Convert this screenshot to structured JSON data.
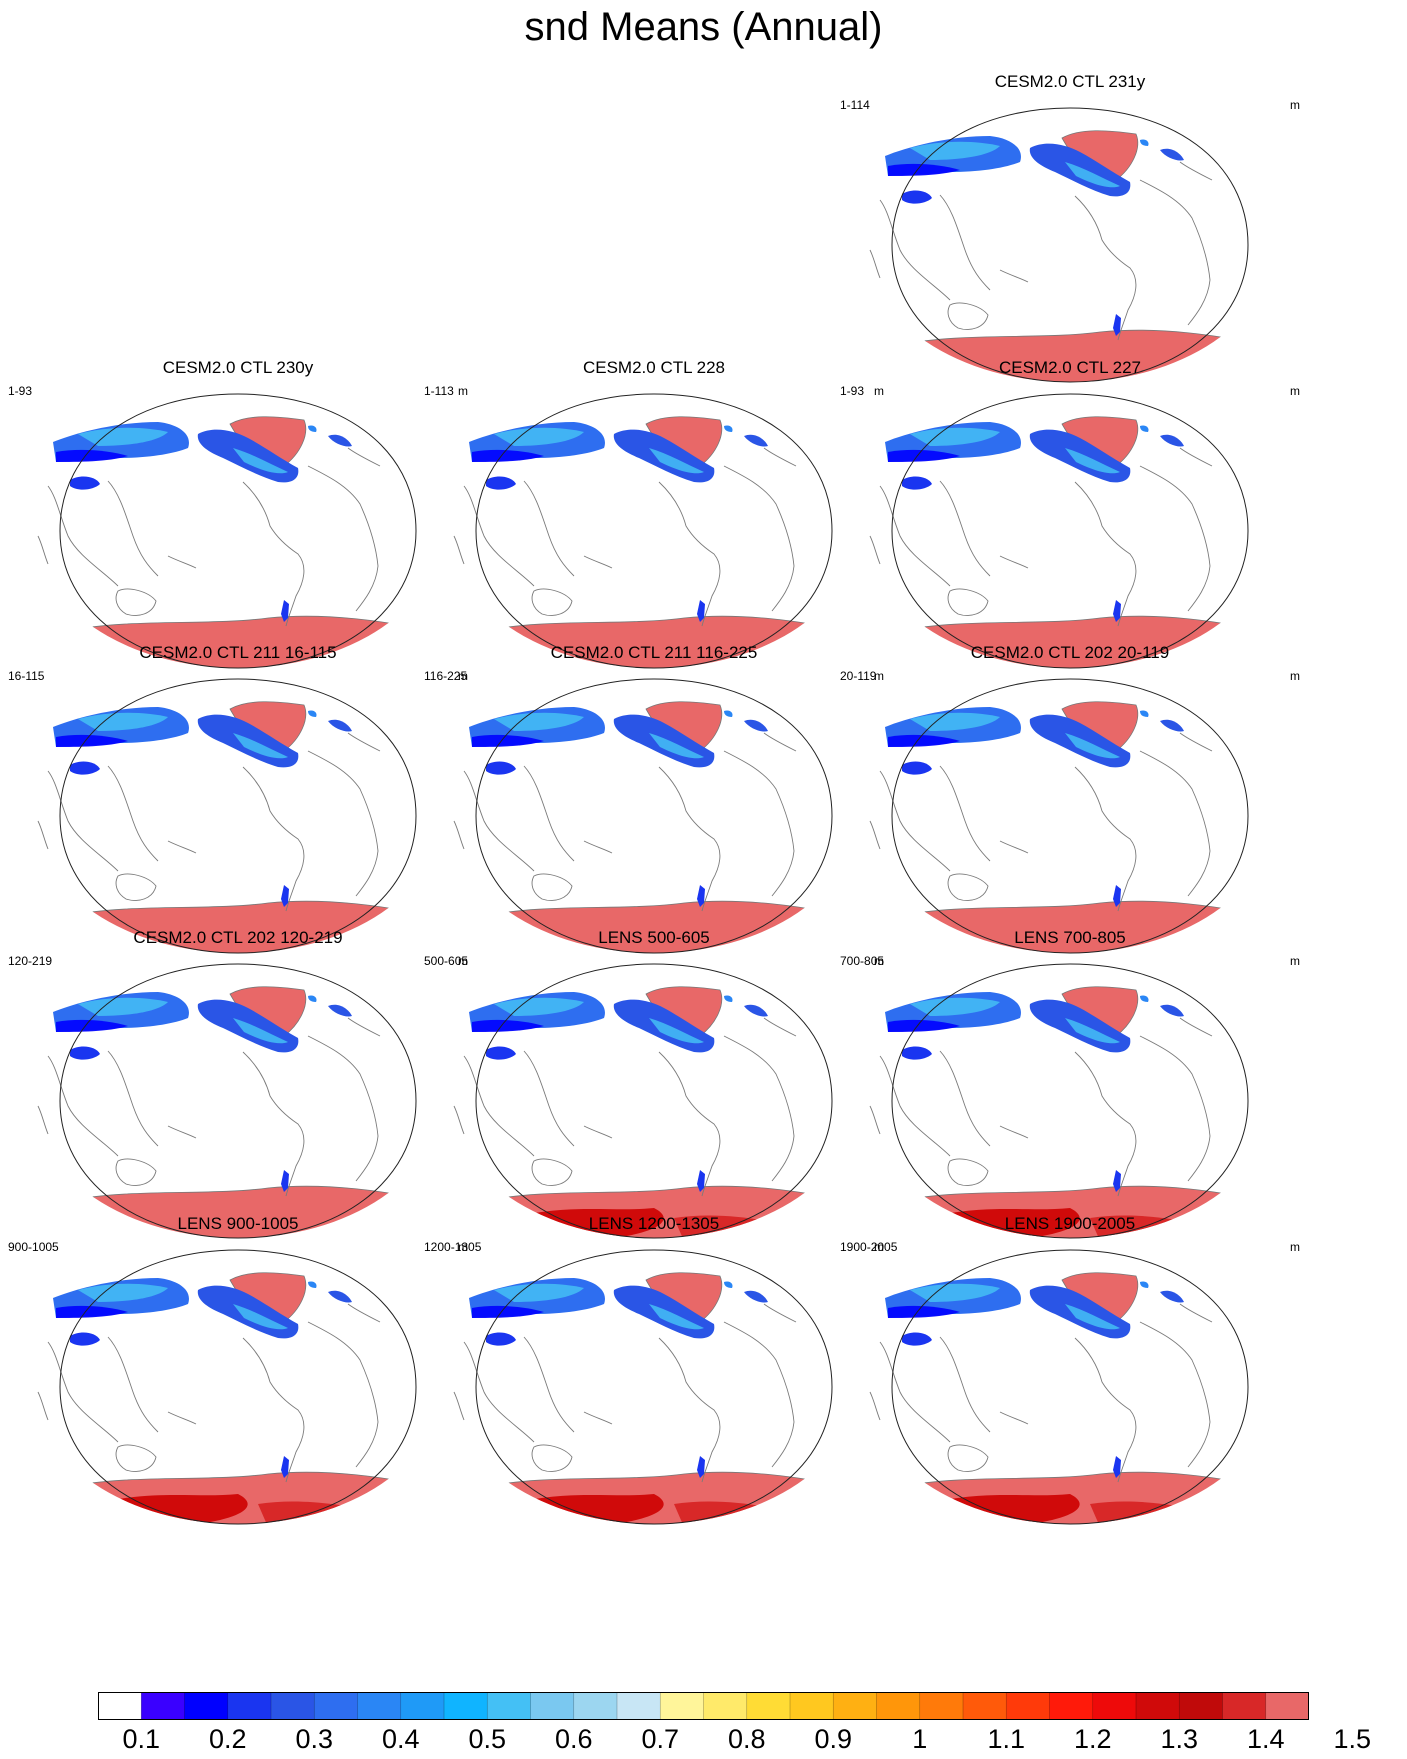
{
  "figure_title": "snd Means (Annual)",
  "units": "m",
  "panels": [
    {
      "title": "CESM2.0 CTL 231y",
      "years": "1-114",
      "units": "m",
      "col": 2,
      "row": 0,
      "antarctic_dark": false
    },
    {
      "title": "CESM2.0 CTL 230y",
      "years": "1-93",
      "units": "m",
      "col": 0,
      "row": 1,
      "antarctic_dark": false
    },
    {
      "title": "CESM2.0 CTL 228",
      "years": "1-113",
      "units": "m",
      "col": 1,
      "row": 1,
      "antarctic_dark": false
    },
    {
      "title": "CESM2.0 CTL 227",
      "years": "1-93",
      "units": "m",
      "col": 2,
      "row": 1,
      "antarctic_dark": false
    },
    {
      "title": "CESM2.0 CTL 211 16-115",
      "years": "16-115",
      "units": "m",
      "col": 0,
      "row": 2,
      "antarctic_dark": false
    },
    {
      "title": "CESM2.0 CTL 211 116-225",
      "years": "116-225",
      "units": "m",
      "col": 1,
      "row": 2,
      "antarctic_dark": false
    },
    {
      "title": "CESM2.0 CTL 202 20-119",
      "years": "20-119",
      "units": "m",
      "col": 2,
      "row": 2,
      "antarctic_dark": false
    },
    {
      "title": "CESM2.0 CTL 202 120-219",
      "years": "120-219",
      "units": "m",
      "col": 0,
      "row": 3,
      "antarctic_dark": false
    },
    {
      "title": "LENS 500-605",
      "years": "500-605",
      "units": "m",
      "col": 1,
      "row": 3,
      "antarctic_dark": true
    },
    {
      "title": "LENS 700-805",
      "years": "700-805",
      "units": "m",
      "col": 2,
      "row": 3,
      "antarctic_dark": true
    },
    {
      "title": "LENS 900-1005",
      "years": "900-1005",
      "units": "m",
      "col": 0,
      "row": 4,
      "antarctic_dark": true
    },
    {
      "title": "LENS 1200-1305",
      "years": "1200-1305",
      "units": "m",
      "col": 1,
      "row": 4,
      "antarctic_dark": true
    },
    {
      "title": "LENS 1900-2005",
      "years": "1900-2005",
      "units": "m",
      "col": 2,
      "row": 4,
      "antarctic_dark": true
    }
  ],
  "colorbar": {
    "colors": [
      "#ffffff",
      "#3a00ff",
      "#0000ff",
      "#1a35f0",
      "#2a55e6",
      "#2e6ef0",
      "#2a86f5",
      "#1f9af7",
      "#10b4ff",
      "#44c0f5",
      "#7ac8f0",
      "#9cd6f0",
      "#c8e6f5",
      "#fff59a",
      "#ffea6a",
      "#ffdc35",
      "#ffc81f",
      "#ffb012",
      "#ff960a",
      "#ff7a0a",
      "#ff5a0a",
      "#ff3a0a",
      "#ff1a0a",
      "#ee0a0a",
      "#d00a0a",
      "#c00a0a",
      "#d82828",
      "#e86868"
    ],
    "tick_labels": [
      "0.1",
      "0.2",
      "0.3",
      "0.4",
      "0.5",
      "0.6",
      "0.7",
      "0.8",
      "0.9",
      "1",
      "1.1",
      "1.2",
      "1.3",
      "1.4",
      "1.5"
    ]
  }
}
